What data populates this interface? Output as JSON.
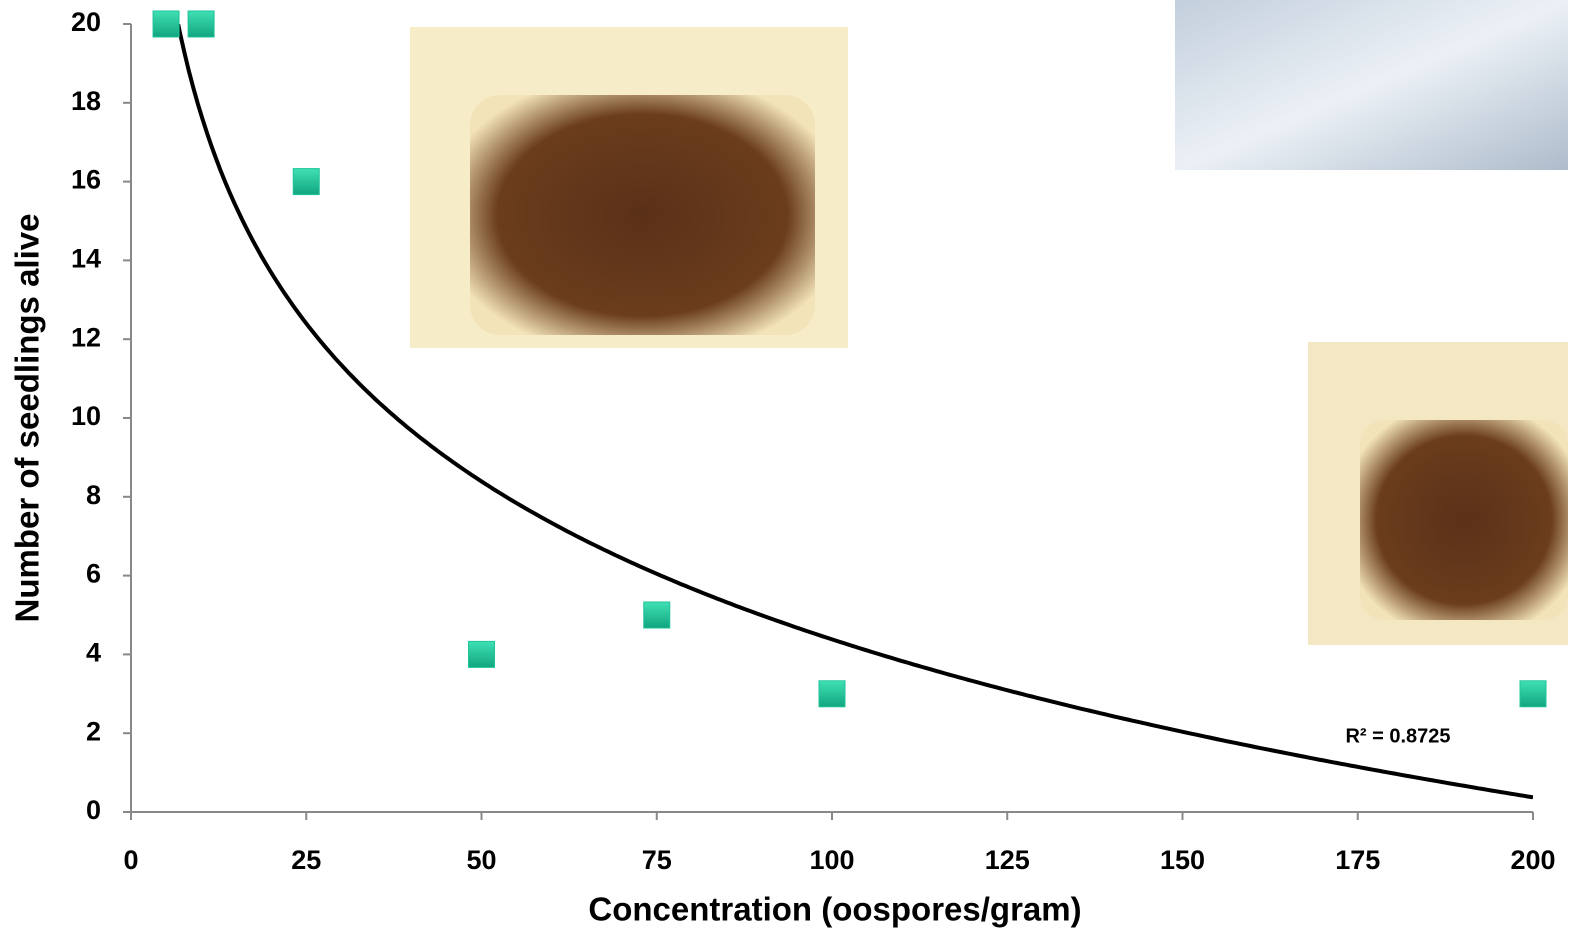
{
  "chart_data": {
    "type": "scatter",
    "x_label": "Concentration (oospores/gram)",
    "y_label": "Number of seedlings alive",
    "x": [
      5,
      10,
      25,
      50,
      75,
      100,
      200
    ],
    "values": [
      20,
      20,
      16,
      4,
      5,
      3,
      3
    ],
    "color": "#1ec49a",
    "xlim": [
      0,
      200
    ],
    "xticks": [
      0,
      25,
      50,
      75,
      100,
      125,
      150,
      175,
      200
    ],
    "ylim": [
      0,
      20
    ],
    "yticks": [
      0,
      2,
      4,
      6,
      8,
      10,
      12,
      14,
      16,
      18,
      20
    ],
    "trendline": "logarithmic",
    "annotation": "R² = 0.8725"
  }
}
